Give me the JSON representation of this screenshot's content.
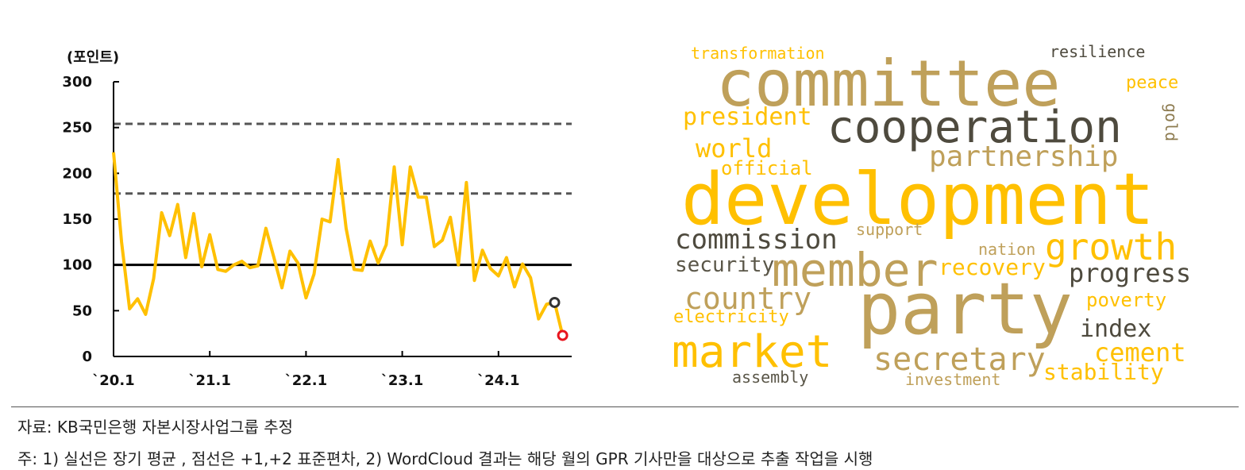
{
  "chart_data": {
    "type": "line",
    "ylabel": "(포인트)",
    "ylim": [
      0,
      300
    ],
    "yticks": [
      0,
      50,
      100,
      150,
      200,
      250,
      300
    ],
    "x_tick_labels": [
      "`20.1",
      "`21.1",
      "`22.1",
      "`23.1",
      "`24.1"
    ],
    "x_tick_months": [
      0,
      12,
      24,
      36,
      48
    ],
    "grid": false,
    "reference_lines": {
      "mean": 100,
      "plus_1_sd": 178,
      "plus_2_sd": 254
    },
    "series": [
      {
        "x": [
          "2020-01",
          "2020-02",
          "2020-03",
          "2020-04",
          "2020-05",
          "2020-06",
          "2020-07",
          "2020-08",
          "2020-09",
          "2020-10",
          "2020-11",
          "2020-12",
          "2021-01",
          "2021-02",
          "2021-03",
          "2021-04",
          "2021-05",
          "2021-06",
          "2021-07",
          "2021-08",
          "2021-09",
          "2021-10",
          "2021-11",
          "2021-12",
          "2022-01",
          "2022-02",
          "2022-03",
          "2022-04",
          "2022-05",
          "2022-06",
          "2022-07",
          "2022-08",
          "2022-09",
          "2022-10",
          "2022-11",
          "2022-12",
          "2023-01",
          "2023-02",
          "2023-03",
          "2023-04",
          "2023-05",
          "2023-06",
          "2023-07",
          "2023-08",
          "2023-09",
          "2023-10",
          "2023-11",
          "2023-12",
          "2024-01",
          "2024-02",
          "2024-03",
          "2024-04",
          "2024-05",
          "2024-06",
          "2024-07",
          "2024-08",
          "2024-09"
        ],
        "values": [
          223,
          125,
          52,
          63,
          46,
          85,
          157,
          132,
          166,
          108,
          156,
          98,
          133,
          95,
          93,
          100,
          104,
          97,
          99,
          140,
          108,
          75,
          115,
          102,
          64,
          90,
          150,
          147,
          215,
          140,
          95,
          94,
          126,
          102,
          122,
          207,
          122,
          207,
          174,
          174,
          120,
          127,
          152,
          100,
          190,
          83,
          116,
          96,
          88,
          108,
          76,
          101,
          86,
          41,
          57,
          59,
          23
        ],
        "color": "#FFC000"
      }
    ],
    "highlight_points": [
      {
        "x": "2024-08",
        "value": 59,
        "color": "#333333"
      },
      {
        "x": "2024-09",
        "value": 23,
        "color": "#E8141E"
      }
    ]
  },
  "wordcloud": {
    "words": [
      {
        "text": "transformation",
        "color": "#FFC000"
      },
      {
        "text": "committee",
        "color": "#BFA05A"
      },
      {
        "text": "resilience",
        "color": "#4E4A3E"
      },
      {
        "text": "peace",
        "color": "#FFC000"
      },
      {
        "text": "president",
        "color": "#FFC000"
      },
      {
        "text": "cooperation",
        "color": "#4E4A3E"
      },
      {
        "text": "gold",
        "color": "#8C7A4E"
      },
      {
        "text": "world",
        "color": "#FFC000"
      },
      {
        "text": "partnership",
        "color": "#BFA05A"
      },
      {
        "text": "official",
        "color": "#FFC000"
      },
      {
        "text": "development",
        "color": "#FFC000"
      },
      {
        "text": "commission",
        "color": "#4E4A3E"
      },
      {
        "text": "support",
        "color": "#BFA05A"
      },
      {
        "text": "growth",
        "color": "#FFC000"
      },
      {
        "text": "nation",
        "color": "#BFA05A"
      },
      {
        "text": "security",
        "color": "#5A5648"
      },
      {
        "text": "member",
        "color": "#BFA05A"
      },
      {
        "text": "recovery",
        "color": "#FFC000"
      },
      {
        "text": "progress",
        "color": "#4E4A3E"
      },
      {
        "text": "country",
        "color": "#BFA05A"
      },
      {
        "text": "party",
        "color": "#BFA05A"
      },
      {
        "text": "poverty",
        "color": "#FFC000"
      },
      {
        "text": "electricity",
        "color": "#FFC000"
      },
      {
        "text": "index",
        "color": "#4E4A3E"
      },
      {
        "text": "market",
        "color": "#FFC000"
      },
      {
        "text": "secretary",
        "color": "#BFA05A"
      },
      {
        "text": "cement",
        "color": "#FFC000"
      },
      {
        "text": "assembly",
        "color": "#5A5648"
      },
      {
        "text": "investment",
        "color": "#BFA05A"
      },
      {
        "text": "stability",
        "color": "#FFC000"
      }
    ]
  },
  "footer": {
    "source": "자료: KB국민은행 자본시장사업그룹 추정",
    "note": "주: 1) 실선은 장기 평균 , 점선은 +1,+2 표준편차, 2) WordCloud 결과는 해당 월의 GPR 기사만을 대상으로 추출 작업을 시행"
  }
}
